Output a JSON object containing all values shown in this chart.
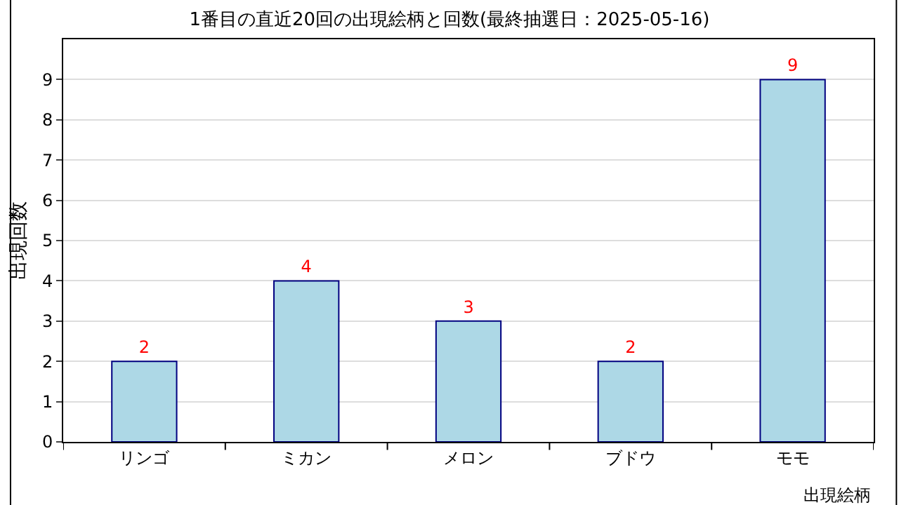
{
  "chart_data": {
    "type": "bar",
    "title": "1番目の直近20回の出現絵柄と回数(最終抽選日：2025-05-16)",
    "xlabel": "出現絵柄",
    "ylabel": "出現回数",
    "categories": [
      "リンゴ",
      "ミカン",
      "メロン",
      "ブドウ",
      "モモ"
    ],
    "values": [
      2,
      4,
      3,
      2,
      9
    ],
    "color": "#add8e6",
    "ylim": [
      0,
      10
    ],
    "yticks": [
      0,
      1,
      2,
      3,
      4,
      5,
      6,
      7,
      8,
      9
    ],
    "grid": "y",
    "data_labels": true,
    "legend": false
  }
}
